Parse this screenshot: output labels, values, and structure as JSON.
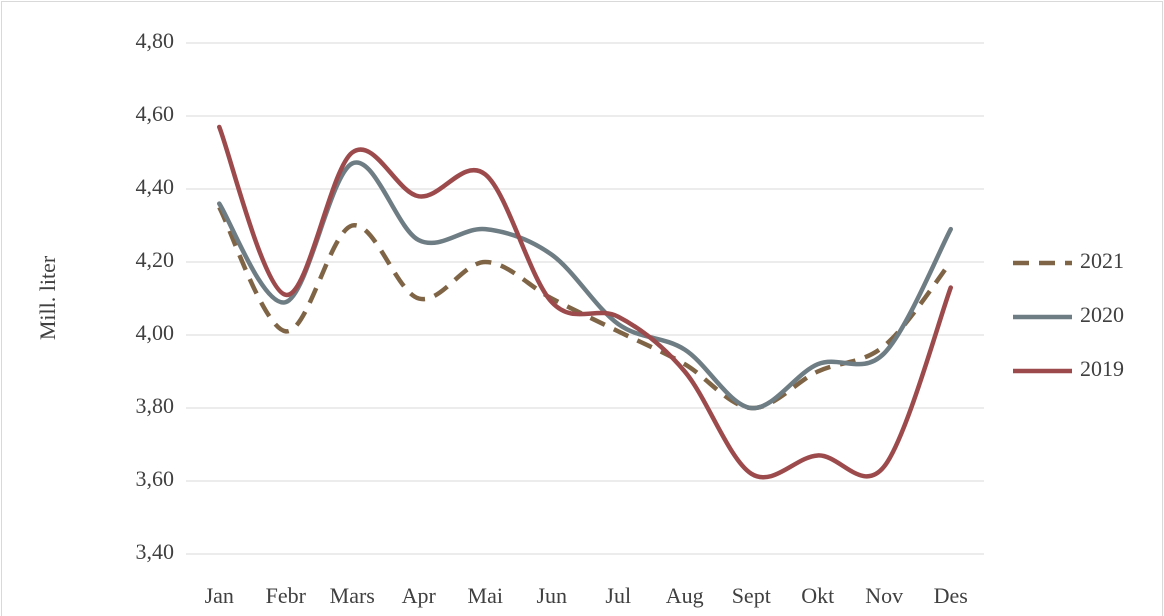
{
  "chart_data": {
    "type": "line",
    "y_label": "Mill. liter",
    "categories": [
      "Jan",
      "Febr",
      "Mars",
      "Apr",
      "Mai",
      "Jun",
      "Jul",
      "Aug",
      "Sept",
      "Okt",
      "Nov",
      "Des"
    ],
    "series": [
      {
        "name": "2021",
        "color": "#7f6445",
        "dashed": true,
        "values": [
          4.35,
          4.01,
          4.3,
          4.1,
          4.2,
          4.1,
          4.01,
          3.92,
          3.8,
          3.9,
          3.97,
          4.2
        ]
      },
      {
        "name": "2020",
        "color": "#6e7c83",
        "dashed": false,
        "values": [
          4.36,
          4.09,
          4.47,
          4.26,
          4.29,
          4.22,
          4.03,
          3.96,
          3.8,
          3.92,
          3.95,
          4.29
        ]
      },
      {
        "name": "2019",
        "color": "#9d4a4c",
        "dashed": false,
        "values": [
          4.57,
          4.11,
          4.5,
          4.38,
          4.44,
          4.09,
          4.05,
          3.9,
          3.62,
          3.67,
          3.64,
          4.13
        ]
      }
    ],
    "ylim": [
      3.4,
      4.8
    ],
    "yticks": [
      {
        "value": 3.4,
        "label": "3,40"
      },
      {
        "value": 3.6,
        "label": "3,60"
      },
      {
        "value": 3.8,
        "label": "3,80"
      },
      {
        "value": 4.0,
        "label": "4,00"
      },
      {
        "value": 4.2,
        "label": "4,20"
      },
      {
        "value": 4.4,
        "label": "4,40"
      },
      {
        "value": 4.6,
        "label": "4,60"
      },
      {
        "value": 4.8,
        "label": "4,80"
      }
    ],
    "grid": true,
    "smooth": true,
    "legend": "right"
  }
}
